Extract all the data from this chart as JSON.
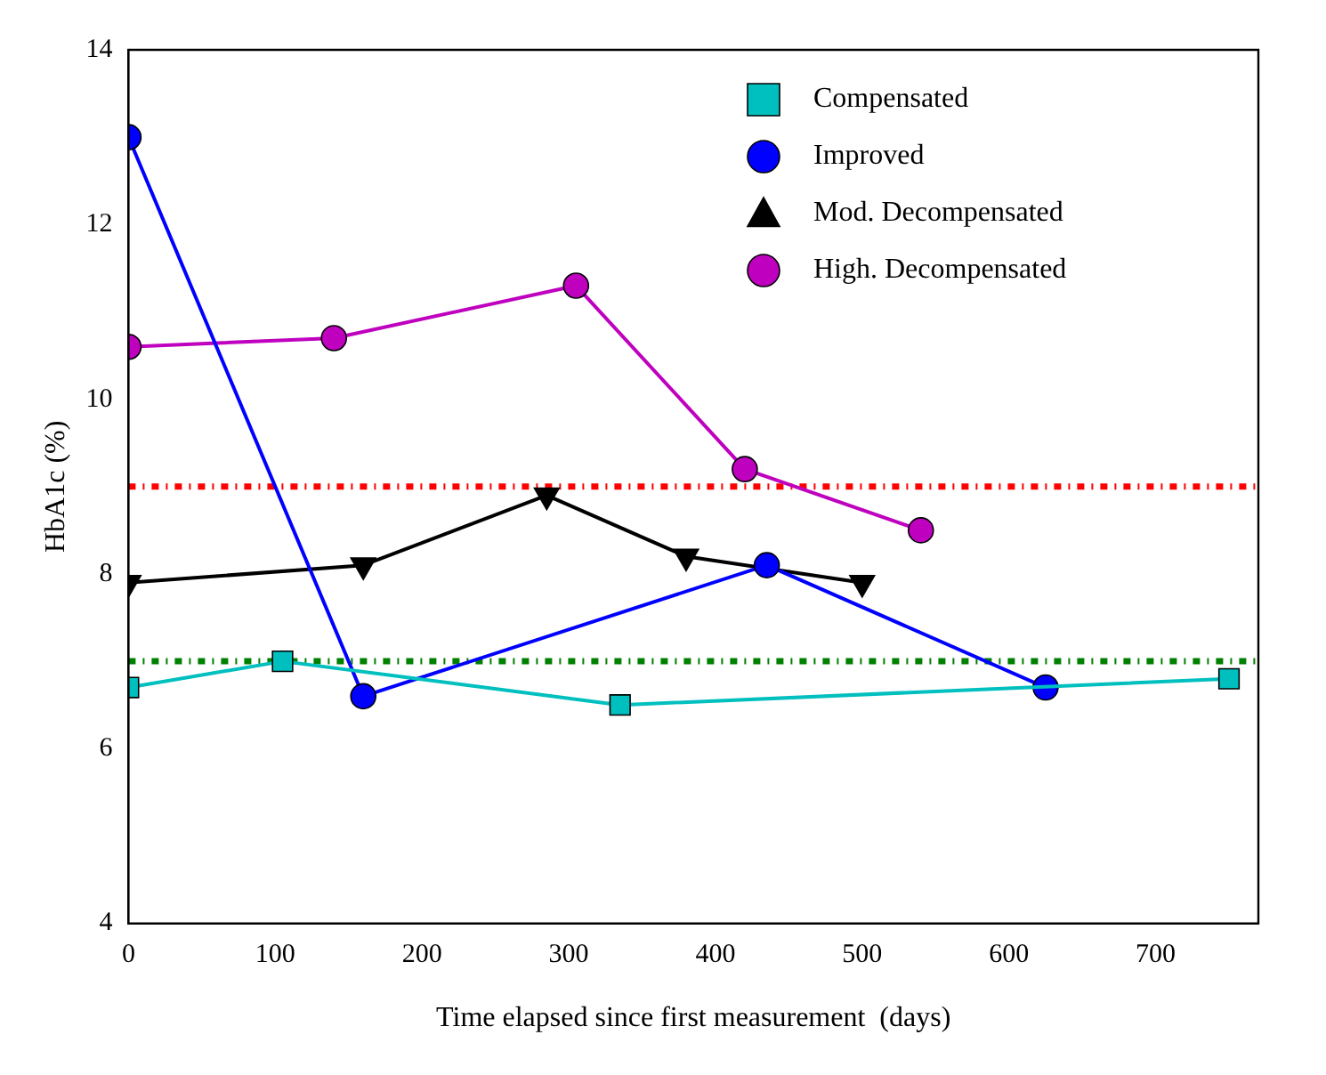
{
  "chart_data": {
    "type": "line",
    "xlabel": "Time elapsed since first measurement  (days)",
    "ylabel": "HbA1c (%)",
    "xlim": [
      0,
      770
    ],
    "xticks": [
      0,
      100,
      200,
      300,
      400,
      500,
      600,
      700
    ],
    "ylim": [
      4,
      14
    ],
    "yticks": [
      4,
      6,
      8,
      10,
      12,
      14
    ],
    "grid": false,
    "legend": "top right",
    "series": [
      {
        "name": "Compensated",
        "color": "#00bfbf",
        "marker": "square",
        "x": [
          0,
          105,
          335,
          750
        ],
        "values": [
          6.7,
          7.0,
          6.5,
          6.8
        ]
      },
      {
        "name": "Improved",
        "color": "#0000ff",
        "marker": "circle",
        "x": [
          0,
          160,
          435,
          625
        ],
        "values": [
          13.0,
          6.6,
          8.1,
          6.7
        ]
      },
      {
        "name": "Mod. Decompensated",
        "color": "#000000",
        "marker": "triangle",
        "x": [
          0,
          160,
          285,
          380,
          500
        ],
        "values": [
          7.9,
          8.1,
          8.9,
          8.2,
          7.9
        ]
      },
      {
        "name": "High. Decompensated",
        "color": "#bf00bf",
        "marker": "circle",
        "x": [
          0,
          140,
          305,
          420,
          540
        ],
        "values": [
          10.6,
          10.7,
          11.3,
          9.2,
          8.5
        ]
      }
    ],
    "ref_lines": [
      {
        "axis": "y",
        "value": 9,
        "color": "#ff0000",
        "line_style": "dashdot"
      },
      {
        "axis": "y",
        "value": 7,
        "color": "#008000",
        "line_style": "dashdot"
      }
    ]
  }
}
